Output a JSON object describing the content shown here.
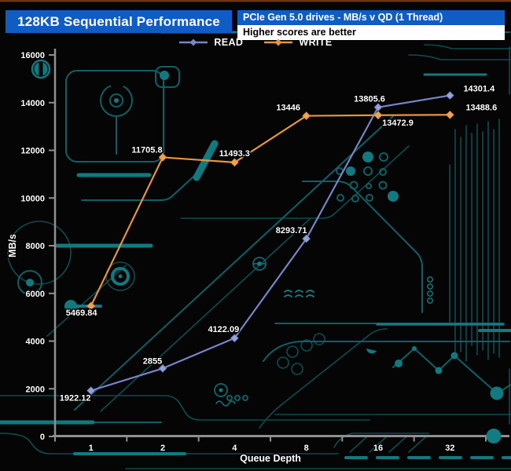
{
  "header": {
    "title": "128KB Sequential Performance",
    "subtitle": "PCIe Gen 5.0 drives - MB/s v QD (1 Thread)",
    "note": "Higher scores are better"
  },
  "legend": {
    "items": [
      {
        "label": "READ",
        "color": "#7585c6"
      },
      {
        "label": "WRITE",
        "color": "#e8943c"
      }
    ]
  },
  "chart_data": {
    "type": "line",
    "title": "128KB Sequential Performance",
    "categories": [
      "1",
      "2",
      "4",
      "8",
      "16",
      "32"
    ],
    "series": [
      {
        "name": "READ",
        "color": "#7585c6",
        "marker_color": "#96a2da",
        "marker": "diamond",
        "values": [
          1922.12,
          2855,
          4122.09,
          8293.71,
          13805.6,
          14301.4
        ],
        "labels": [
          "1922.12",
          "2855",
          "4122.09",
          "8293.71",
          "13805.6",
          "14301.4"
        ],
        "label_dx": [
          -20,
          -13,
          -14,
          -19,
          -11,
          37
        ],
        "label_dy": [
          13,
          -6,
          -8,
          -7,
          -7,
          -5
        ]
      },
      {
        "name": "WRITE",
        "color": "#e8943c",
        "marker_color": "#f0a34e",
        "marker": "diamond",
        "values": [
          5469.84,
          11705.8,
          11493.3,
          13446,
          13472.9,
          13488.6
        ],
        "labels": [
          "5469.84",
          "11705.8",
          "11493.3",
          "13446",
          "13472.9",
          "13488.6"
        ],
        "label_dx": [
          -12,
          -20,
          0,
          -23,
          25,
          40
        ],
        "label_dy": [
          12,
          -6,
          -8,
          -7,
          13,
          -6
        ]
      }
    ],
    "xlabel": "Queue Depth",
    "ylabel": "MB/s",
    "ylim": [
      0,
      16000
    ],
    "yticks": [
      0,
      2000,
      4000,
      6000,
      8000,
      10000,
      12000,
      14000,
      16000
    ],
    "grid": false,
    "legend_position": "top",
    "x_axis_type": "category"
  },
  "colors": {
    "header_blue": "#0e5cc4",
    "axis_gray": "#8f8f8f",
    "label_text": "#ffffff",
    "circuit_teal": "#0e6066",
    "circuit_bright": "#11797f",
    "background": "#050505"
  }
}
